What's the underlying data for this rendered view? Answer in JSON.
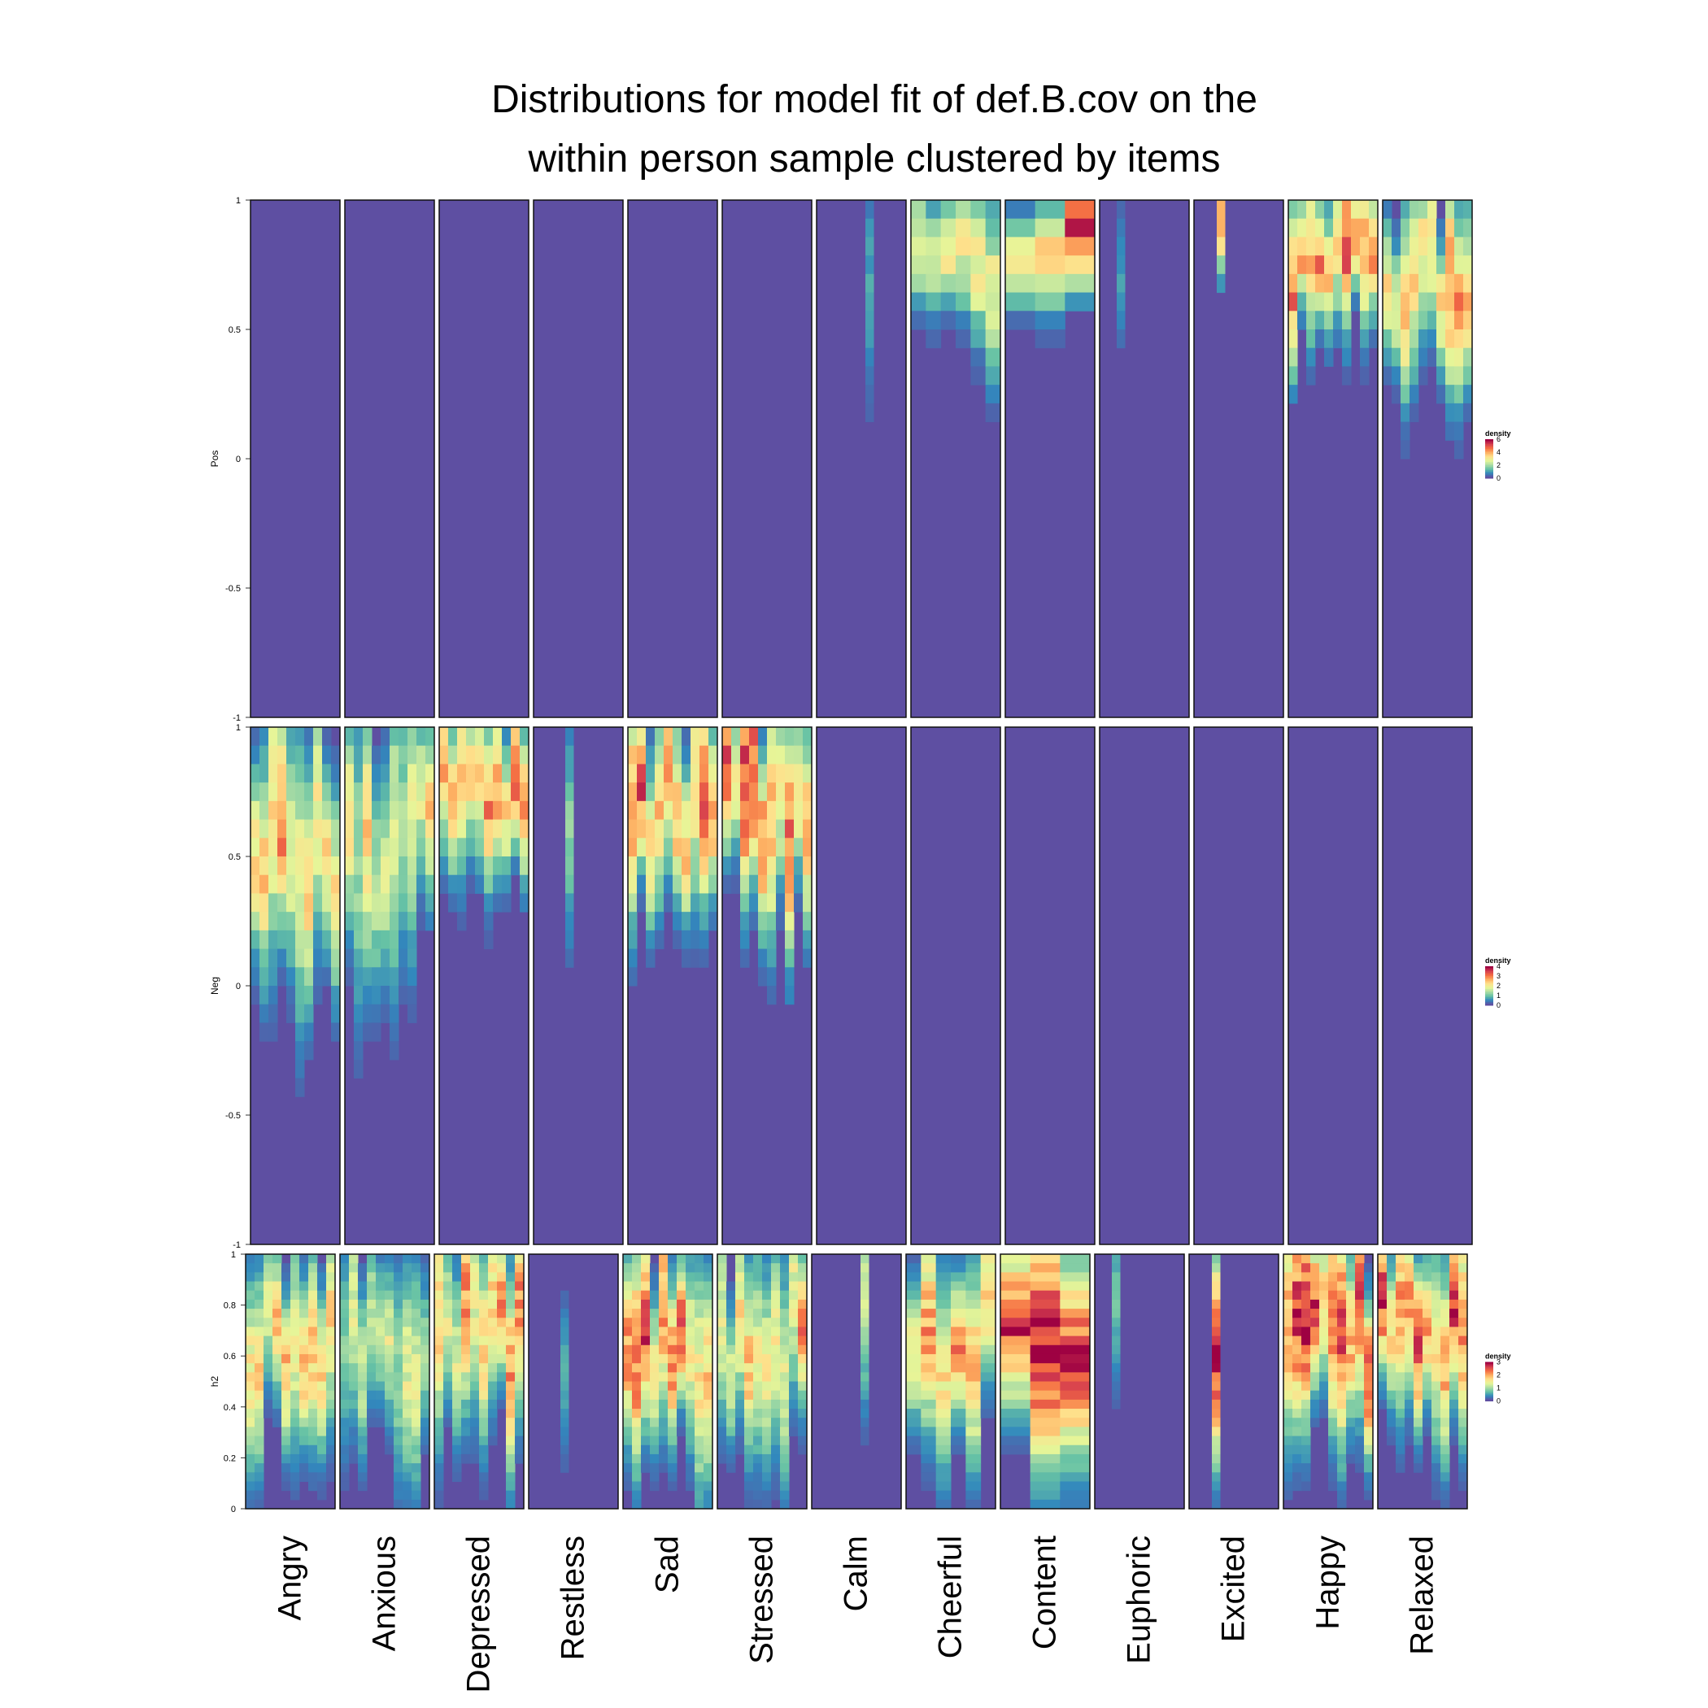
{
  "title_lines": [
    "Distributions for model fit of def.B.cov on the",
    "within person sample clustered by items"
  ],
  "colors": {
    "background_low_density": "#5e4fa2",
    "palette": "Spectral (reversed)",
    "scale_stops": [
      "#5e4fa2",
      "#3288bd",
      "#66c2a5",
      "#abdda4",
      "#e6f598",
      "#fee08b",
      "#fdae61",
      "#f46d43",
      "#d53e4f",
      "#9e0142"
    ]
  },
  "chart_data": {
    "type": "heatmap",
    "description_of_marks": "per-item vertical density strips",
    "items": [
      "Angry",
      "Anxious",
      "Depressed",
      "Restless",
      "Sad",
      "Stressed",
      "Calm",
      "Cheerful",
      "Content",
      "Euphoric",
      "Excited",
      "Happy",
      "Relaxed"
    ],
    "facets": [
      {
        "ylabel": "Pos",
        "ylim": [
          -1,
          1
        ],
        "yticks": [
          "1",
          "0.5",
          "0",
          "-0.5",
          "-1"
        ],
        "legend": {
          "title": "density",
          "ticks": [
            "6",
            "4",
            "2",
            "0"
          ],
          "max": 6
        },
        "active_items": [
          "Calm",
          "Cheerful",
          "Content",
          "Euphoric",
          "Excited",
          "Happy",
          "Relaxed"
        ],
        "item_profiles": {
          "Calm": {
            "columns": 1,
            "peak_density": 1.5,
            "range": [
              0.0,
              1.0
            ]
          },
          "Cheerful": {
            "columns": 6,
            "peak_density": 3.5,
            "range": [
              0.2,
              1.0
            ]
          },
          "Content": {
            "columns": 3,
            "peak_density": 5.5,
            "range": [
              0.5,
              1.0
            ]
          },
          "Euphoric": {
            "columns": 1,
            "peak_density": 1.0,
            "range": [
              0.2,
              1.0
            ]
          },
          "Excited": {
            "columns": 1,
            "peak_density": 6.0,
            "range": [
              0.55,
              1.0
            ]
          },
          "Happy": {
            "columns": 10,
            "peak_density": 5.0,
            "range": [
              0.3,
              1.0
            ]
          },
          "Relaxed": {
            "columns": 10,
            "peak_density": 4.5,
            "range": [
              0.1,
              1.0
            ]
          }
        }
      },
      {
        "ylabel": "Neg",
        "ylim": [
          -1,
          1
        ],
        "yticks": [
          "1",
          "0.5",
          "0",
          "-0.5",
          "-1"
        ],
        "legend": {
          "title": "density",
          "ticks": [
            "4",
            "3",
            "2",
            "1",
            "0"
          ],
          "max": 4
        },
        "active_items": [
          "Angry",
          "Anxious",
          "Depressed",
          "Restless",
          "Sad",
          "Stressed"
        ],
        "item_profiles": {
          "Angry": {
            "columns": 10,
            "peak_density": 3.2,
            "range": [
              -0.3,
              1.0
            ]
          },
          "Anxious": {
            "columns": 10,
            "peak_density": 2.3,
            "range": [
              -0.3,
              1.0
            ]
          },
          "Depressed": {
            "columns": 10,
            "peak_density": 3.4,
            "range": [
              0.1,
              1.0
            ]
          },
          "Restless": {
            "columns": 1,
            "peak_density": 1.2,
            "range": [
              0.0,
              1.0
            ]
          },
          "Sad": {
            "columns": 10,
            "peak_density": 3.8,
            "range": [
              0.0,
              1.0
            ]
          },
          "Stressed": {
            "columns": 10,
            "peak_density": 3.6,
            "range": [
              0.0,
              1.0
            ]
          }
        }
      },
      {
        "ylabel": "h2",
        "ylim": [
          0,
          1
        ],
        "yticks": [
          "1",
          "0.8",
          "0.6",
          "0.4",
          "0.2",
          "0"
        ],
        "legend": {
          "title": "density",
          "ticks": [
            "3",
            "2",
            "1",
            "0"
          ],
          "max": 3
        },
        "active_items": [
          "Angry",
          "Anxious",
          "Depressed",
          "Restless",
          "Sad",
          "Stressed",
          "Calm",
          "Cheerful",
          "Content",
          "Euphoric",
          "Excited",
          "Happy",
          "Relaxed"
        ],
        "item_profiles": {
          "Angry": {
            "columns": 10,
            "peak_density": 2.0
          },
          "Anxious": {
            "columns": 10,
            "peak_density": 1.4
          },
          "Depressed": {
            "columns": 10,
            "peak_density": 2.2
          },
          "Restless": {
            "columns": 1,
            "peak_density": 1.0
          },
          "Sad": {
            "columns": 10,
            "peak_density": 2.6
          },
          "Stressed": {
            "columns": 10,
            "peak_density": 2.2
          },
          "Calm": {
            "columns": 1,
            "peak_density": 1.3
          },
          "Cheerful": {
            "columns": 6,
            "peak_density": 2.4
          },
          "Content": {
            "columns": 3,
            "peak_density": 3.0
          },
          "Euphoric": {
            "columns": 1,
            "peak_density": 1.0
          },
          "Excited": {
            "columns": 1,
            "peak_density": 3.0
          },
          "Happy": {
            "columns": 10,
            "peak_density": 2.8
          },
          "Relaxed": {
            "columns": 10,
            "peak_density": 2.8
          }
        }
      }
    ]
  }
}
